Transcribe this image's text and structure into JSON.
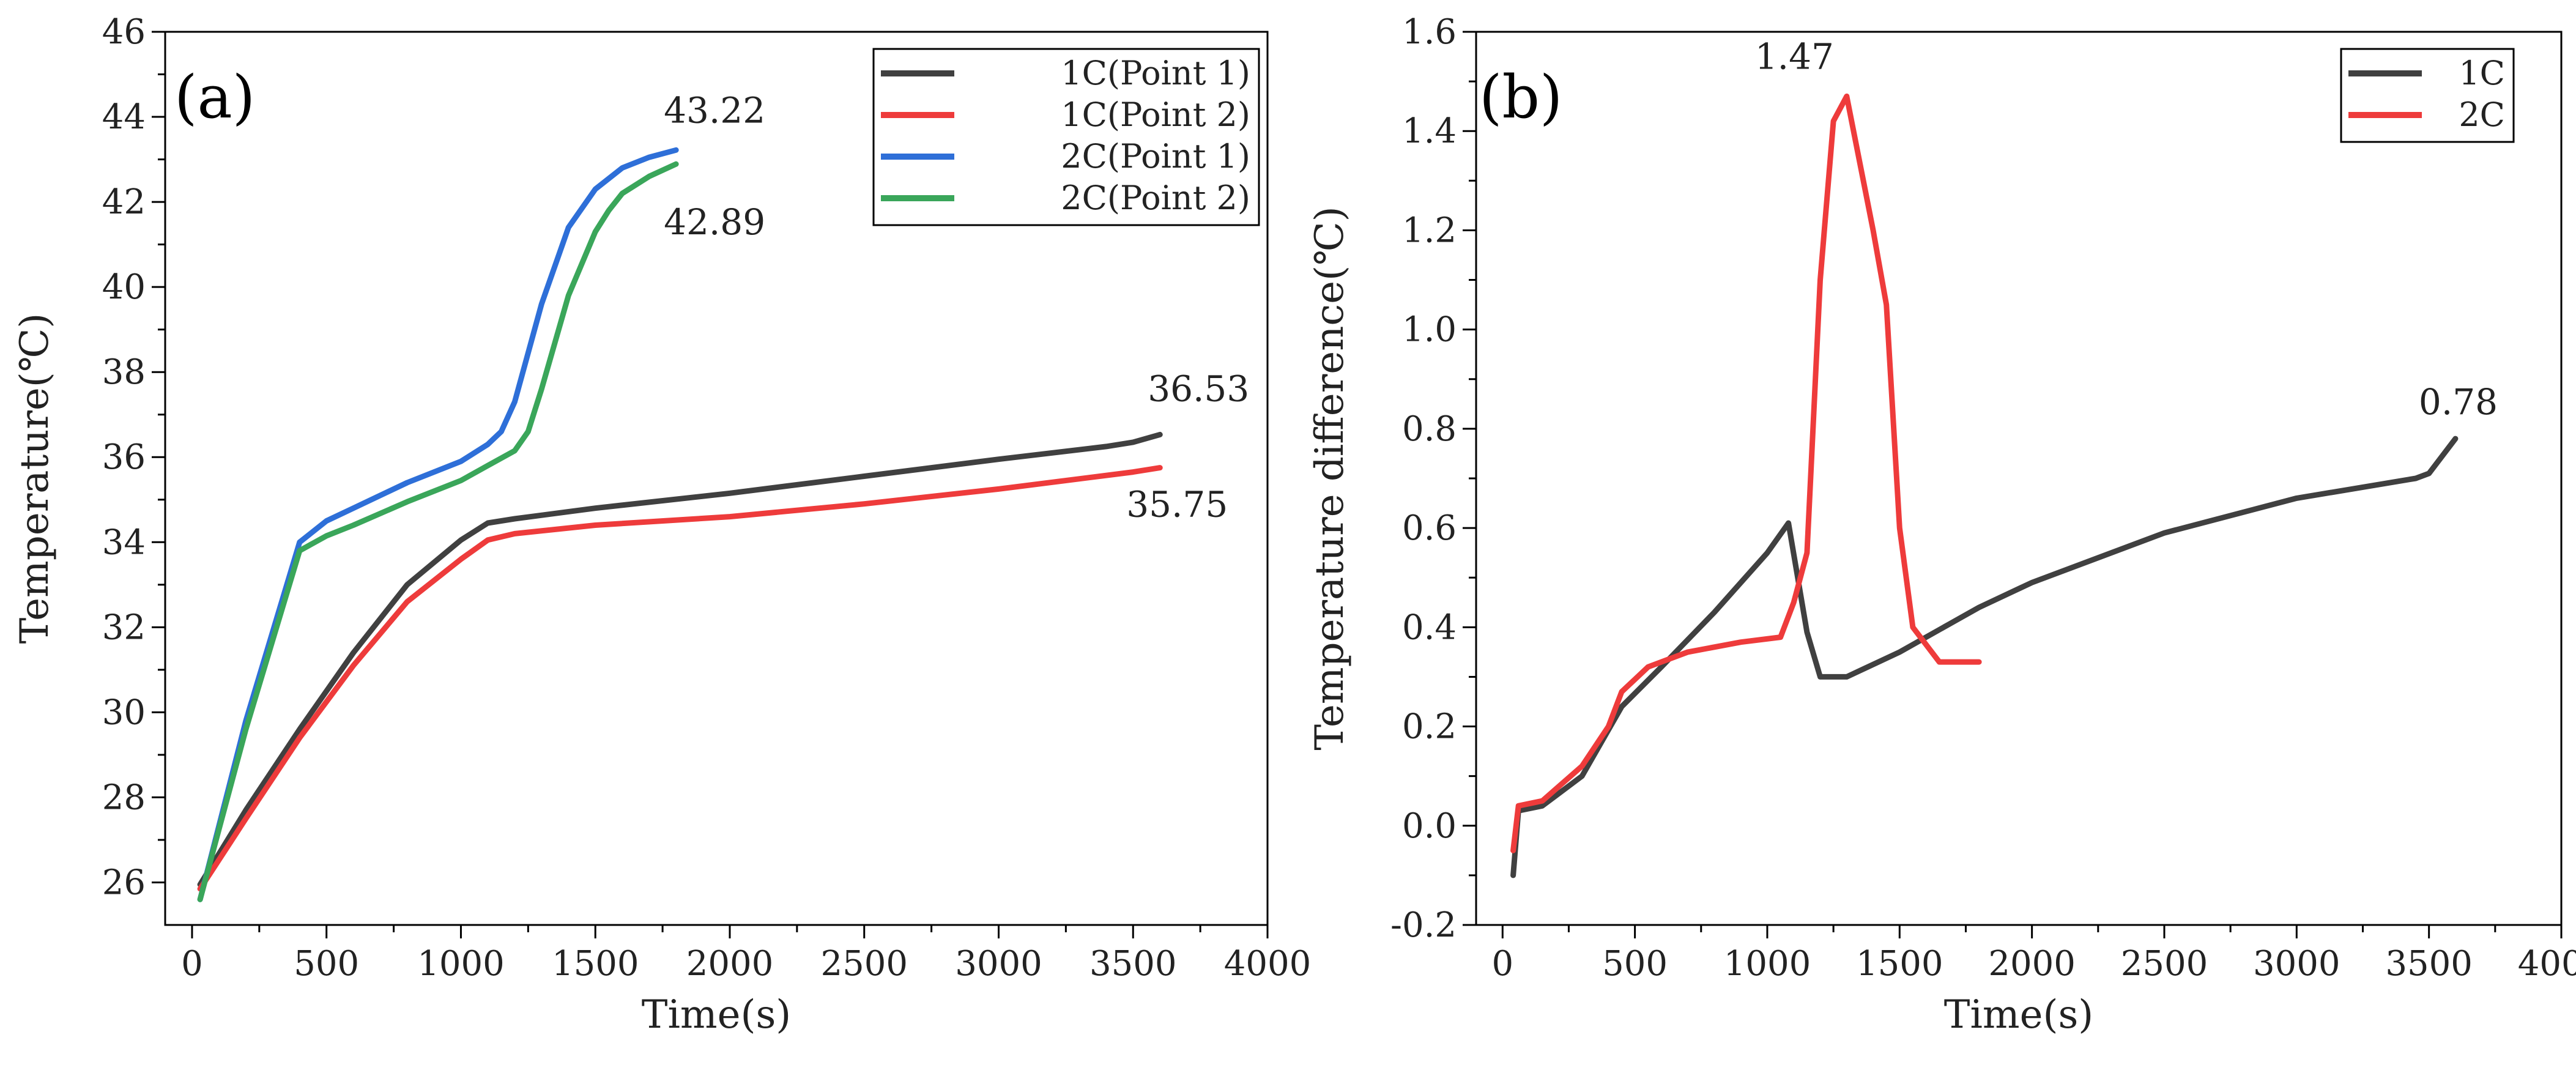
{
  "chart_data": [
    {
      "panel": "(a)",
      "type": "line",
      "title": "",
      "xlabel": "Time(s)",
      "ylabel": "Temperature(℃)",
      "xlim": [
        -100,
        4000
      ],
      "ylim": [
        25,
        46
      ],
      "xticks": [
        0,
        500,
        1000,
        1500,
        2000,
        2500,
        3000,
        3500,
        4000
      ],
      "yticks": [
        26,
        28,
        30,
        32,
        34,
        36,
        38,
        40,
        42,
        44,
        46
      ],
      "legend_position": "top-right",
      "series": [
        {
          "name": "1C(Point 1)",
          "color": "#404040",
          "x": [
            30,
            200,
            400,
            600,
            800,
            1000,
            1100,
            1200,
            1500,
            2000,
            2500,
            3000,
            3400,
            3500,
            3600
          ],
          "y": [
            25.95,
            27.7,
            29.6,
            31.4,
            33.0,
            34.05,
            34.45,
            34.55,
            34.8,
            35.15,
            35.55,
            35.95,
            36.25,
            36.35,
            36.53
          ]
        },
        {
          "name": "1C(Point 2)",
          "color": "#ee3b3b",
          "x": [
            30,
            200,
            400,
            600,
            800,
            1000,
            1100,
            1200,
            1500,
            2000,
            2500,
            3000,
            3500,
            3600
          ],
          "y": [
            25.85,
            27.5,
            29.4,
            31.1,
            32.6,
            33.6,
            34.05,
            34.2,
            34.4,
            34.6,
            34.9,
            35.25,
            35.65,
            35.75
          ]
        },
        {
          "name": "2C(Point 1)",
          "color": "#2e6fd8",
          "x": [
            30,
            200,
            400,
            500,
            600,
            800,
            1000,
            1100,
            1150,
            1200,
            1300,
            1400,
            1500,
            1600,
            1700,
            1800
          ],
          "y": [
            25.6,
            29.8,
            34.0,
            34.5,
            34.8,
            35.4,
            35.9,
            36.3,
            36.6,
            37.3,
            39.6,
            41.4,
            42.3,
            42.8,
            43.05,
            43.22
          ]
        },
        {
          "name": "2C(Point 2)",
          "color": "#3aa65a",
          "x": [
            30,
            200,
            400,
            500,
            600,
            800,
            1000,
            1100,
            1200,
            1250,
            1300,
            1400,
            1500,
            1550,
            1600,
            1700,
            1800
          ],
          "y": [
            25.6,
            29.6,
            33.8,
            34.15,
            34.4,
            34.95,
            35.45,
            35.8,
            36.15,
            36.6,
            37.6,
            39.8,
            41.3,
            41.8,
            42.2,
            42.6,
            42.89
          ]
        }
      ],
      "annotations": [
        {
          "text": "43.22",
          "x": 1800,
          "y": 43.22
        },
        {
          "text": "42.89",
          "x": 1800,
          "y": 42.89
        },
        {
          "text": "36.53",
          "x": 3600,
          "y": 36.53
        },
        {
          "text": "35.75",
          "x": 3600,
          "y": 35.75
        }
      ]
    },
    {
      "panel": "(b)",
      "type": "line",
      "title": "",
      "xlabel": "Time(s)",
      "ylabel": "Temperature difference(℃)",
      "xlim": [
        -100,
        4000
      ],
      "ylim": [
        -0.2,
        1.6
      ],
      "xticks": [
        0,
        500,
        1000,
        1500,
        2000,
        2500,
        3000,
        3500,
        4000
      ],
      "yticks": [
        -0.2,
        0.0,
        0.2,
        0.4,
        0.6,
        0.8,
        1.0,
        1.2,
        1.4,
        1.6
      ],
      "legend_position": "top-right",
      "series": [
        {
          "name": "1C",
          "color": "#404040",
          "x": [
            40,
            60,
            150,
            300,
            450,
            600,
            800,
            1000,
            1080,
            1150,
            1200,
            1300,
            1500,
            1800,
            2000,
            2500,
            3000,
            3450,
            3500,
            3600
          ],
          "y": [
            -0.1,
            0.03,
            0.04,
            0.1,
            0.24,
            0.32,
            0.43,
            0.55,
            0.61,
            0.39,
            0.3,
            0.3,
            0.35,
            0.44,
            0.49,
            0.59,
            0.66,
            0.7,
            0.71,
            0.78
          ]
        },
        {
          "name": "2C",
          "color": "#ee3b3b",
          "x": [
            40,
            60,
            150,
            300,
            400,
            450,
            550,
            700,
            900,
            1050,
            1100,
            1150,
            1200,
            1250,
            1300,
            1400,
            1450,
            1500,
            1550,
            1650,
            1800
          ],
          "y": [
            -0.05,
            0.04,
            0.05,
            0.12,
            0.2,
            0.27,
            0.32,
            0.35,
            0.37,
            0.38,
            0.45,
            0.55,
            1.1,
            1.42,
            1.47,
            1.2,
            1.05,
            0.6,
            0.4,
            0.33,
            0.33
          ]
        }
      ],
      "annotations": [
        {
          "text": "1.47",
          "x": 1300,
          "y": 1.47
        },
        {
          "text": "0.78",
          "x": 3600,
          "y": 0.78
        }
      ]
    }
  ]
}
